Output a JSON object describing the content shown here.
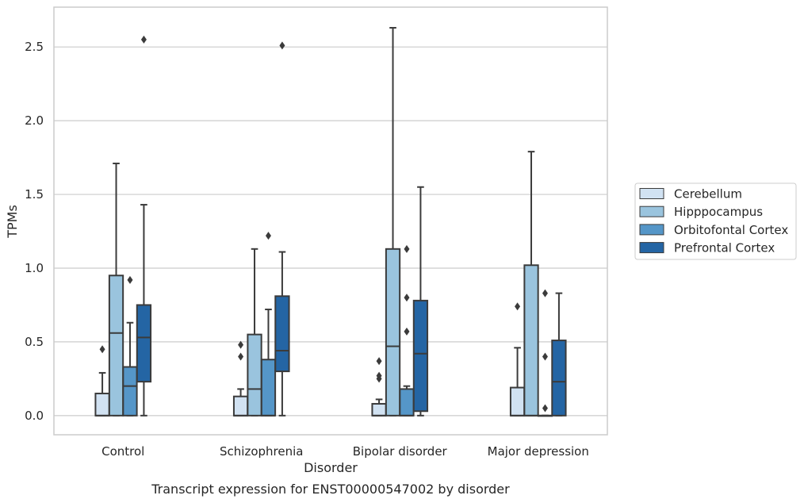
{
  "chart_data": {
    "type": "box",
    "title": "",
    "caption": "Transcript expression for ENST00000547002 by disorder",
    "xlabel": "Disorder",
    "ylabel": "TPMs",
    "ylim": [
      -0.13,
      2.77
    ],
    "yticks": [
      0.0,
      0.5,
      1.0,
      1.5,
      2.0,
      2.5
    ],
    "ytick_labels": [
      "0.0",
      "0.5",
      "1.0",
      "1.5",
      "2.0",
      "2.5"
    ],
    "grid": "horizontal",
    "legend_position": "right",
    "categories": [
      "Control",
      "Schizophrenia",
      "Bipolar disorder",
      "Major depression"
    ],
    "series": [
      {
        "name": "Cerebellum",
        "color": "#d1e2f2",
        "boxes": [
          {
            "min": 0.0,
            "q1": 0.0,
            "median": 0.0,
            "q3": 0.15,
            "max": 0.29,
            "outliers": [
              0.45
            ]
          },
          {
            "min": 0.0,
            "q1": 0.0,
            "median": 0.0,
            "q3": 0.13,
            "max": 0.18,
            "outliers": [
              0.4,
              0.48
            ]
          },
          {
            "min": 0.0,
            "q1": 0.0,
            "median": 0.0,
            "q3": 0.08,
            "max": 0.11,
            "outliers": [
              0.25,
              0.27,
              0.37
            ]
          },
          {
            "min": 0.0,
            "q1": 0.0,
            "median": 0.0,
            "q3": 0.19,
            "max": 0.46,
            "outliers": [
              0.74
            ]
          }
        ]
      },
      {
        "name": "Hipppocampus",
        "color": "#9ac4de",
        "boxes": [
          {
            "min": 0.0,
            "q1": 0.0,
            "median": 0.56,
            "q3": 0.95,
            "max": 1.71,
            "outliers": []
          },
          {
            "min": 0.0,
            "q1": 0.0,
            "median": 0.18,
            "q3": 0.55,
            "max": 1.13,
            "outliers": []
          },
          {
            "min": 0.0,
            "q1": 0.0,
            "median": 0.47,
            "q3": 1.13,
            "max": 2.63,
            "outliers": []
          },
          {
            "min": 0.0,
            "q1": 0.0,
            "median": 0.0,
            "q3": 1.02,
            "max": 1.79,
            "outliers": []
          }
        ]
      },
      {
        "name": "Orbitofontal Cortex",
        "color": "#5596c8",
        "boxes": [
          {
            "min": 0.0,
            "q1": 0.0,
            "median": 0.2,
            "q3": 0.33,
            "max": 0.63,
            "outliers": [
              0.92
            ]
          },
          {
            "min": 0.0,
            "q1": 0.0,
            "median": 0.0,
            "q3": 0.38,
            "max": 0.72,
            "outliers": [
              1.22
            ]
          },
          {
            "min": 0.0,
            "q1": 0.0,
            "median": 0.0,
            "q3": 0.18,
            "max": 0.2,
            "outliers": [
              0.57,
              0.8,
              1.13
            ]
          },
          {
            "min": 0.0,
            "q1": 0.0,
            "median": 0.0,
            "q3": 0.0,
            "max": 0.0,
            "outliers": [
              0.05,
              0.4,
              0.83
            ]
          }
        ]
      },
      {
        "name": "Prefrontal Cortex",
        "color": "#2465a4",
        "boxes": [
          {
            "min": 0.0,
            "q1": 0.23,
            "median": 0.53,
            "q3": 0.75,
            "max": 1.43,
            "outliers": [
              2.55
            ]
          },
          {
            "min": 0.0,
            "q1": 0.3,
            "median": 0.44,
            "q3": 0.81,
            "max": 1.11,
            "outliers": [
              2.51
            ]
          },
          {
            "min": 0.0,
            "q1": 0.03,
            "median": 0.42,
            "q3": 0.78,
            "max": 1.55,
            "outliers": []
          },
          {
            "min": 0.0,
            "q1": 0.0,
            "median": 0.23,
            "q3": 0.51,
            "max": 0.83,
            "outliers": []
          }
        ]
      }
    ]
  }
}
